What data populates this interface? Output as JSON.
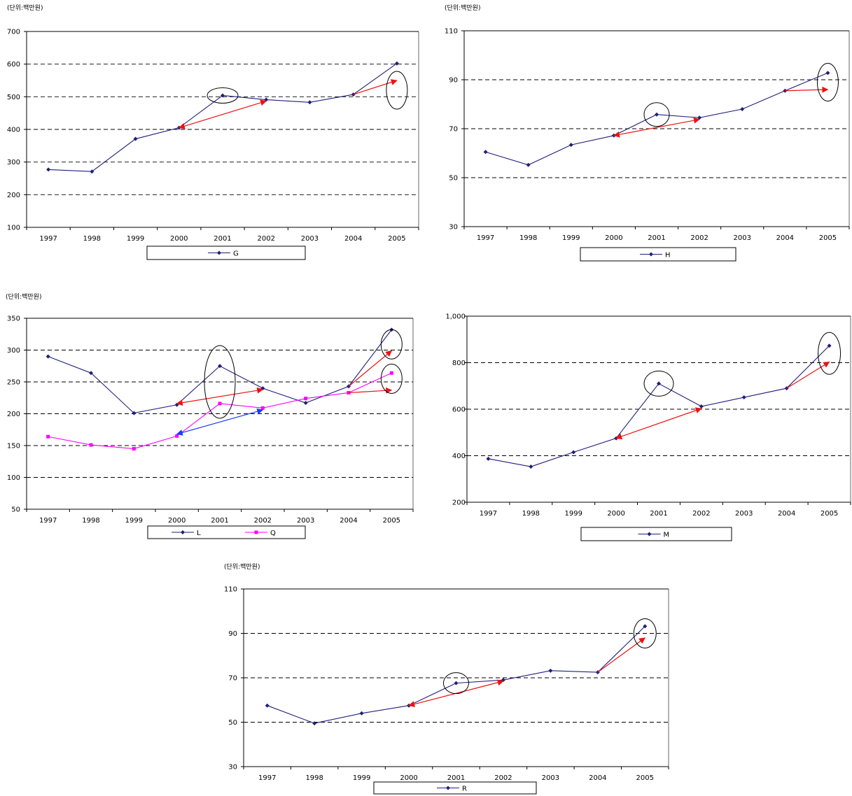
{
  "colors": {
    "navy": "#1f1f7a",
    "magenta": "#ff00ff",
    "red_arrow": "#ee1111",
    "blue_arrow": "#1a3cff",
    "grid": "#000000"
  },
  "chart_data": [
    {
      "id": "G",
      "type": "line",
      "unit_label": "(단위:백만원)",
      "categories": [
        "1997",
        "1998",
        "1999",
        "2000",
        "2001",
        "2002",
        "2003",
        "2004",
        "2005"
      ],
      "y_ticks": [
        "100",
        "200",
        "300",
        "400",
        "500",
        "600",
        "700"
      ],
      "ylim": [
        100,
        700
      ],
      "grid": "dashed horizontal",
      "legend_position": "bottom",
      "series": [
        {
          "name": "G",
          "color": "#1f1f7a",
          "marker": "diamond",
          "values": [
            277,
            271,
            371,
            405,
            504,
            491,
            483,
            507,
            602
          ]
        }
      ],
      "annotations": {
        "arrows": [
          {
            "from": [
              "2000",
              405
            ],
            "to": [
              "2002",
              487
            ],
            "color": "red",
            "heads": "both"
          },
          {
            "from": [
              "2004",
              507
            ],
            "to": [
              "2005",
              550
            ],
            "color": "red",
            "heads": "end"
          }
        ],
        "circles": [
          {
            "x": "2001",
            "y": 504
          },
          {
            "x": "2005",
            "y": 520
          }
        ]
      }
    },
    {
      "id": "H",
      "type": "line",
      "unit_label": "(단위:백만원)",
      "categories": [
        "1997",
        "1998",
        "1999",
        "2000",
        "2001",
        "2002",
        "2003",
        "2004",
        "2005"
      ],
      "y_ticks": [
        "30",
        "50",
        "70",
        "90",
        "110"
      ],
      "ylim": [
        30,
        110
      ],
      "grid": "dashed horizontal",
      "legend_position": "bottom",
      "series": [
        {
          "name": "H",
          "color": "#1f1f7a",
          "marker": "diamond",
          "values": [
            60.5,
            55.2,
            63.4,
            67.2,
            75.8,
            74.5,
            78,
            85.5,
            92.8
          ]
        }
      ],
      "annotations": {
        "arrows": [
          {
            "from": [
              "2000",
              67.2
            ],
            "to": [
              "2002",
              73.8
            ],
            "color": "red",
            "heads": "both"
          },
          {
            "from": [
              "2004",
              85.5
            ],
            "to": [
              "2005",
              86
            ],
            "color": "red",
            "heads": "end"
          }
        ],
        "circles": [
          {
            "x": "2001",
            "y": 75.8
          },
          {
            "x": "2005",
            "y": 89
          }
        ]
      }
    },
    {
      "id": "LQ",
      "type": "line",
      "unit_label": "(단위:백만원)",
      "categories": [
        "1997",
        "1998",
        "1999",
        "2000",
        "2001",
        "2002",
        "2003",
        "2004",
        "2005"
      ],
      "y_ticks": [
        "50",
        "100",
        "150",
        "200",
        "250",
        "300",
        "350"
      ],
      "ylim": [
        50,
        350
      ],
      "grid": "dashed horizontal",
      "legend_position": "bottom",
      "series": [
        {
          "name": "L",
          "color": "#1f1f7a",
          "marker": "diamond",
          "values": [
            290,
            264,
            201,
            214,
            275,
            240,
            217,
            243,
            332
          ]
        },
        {
          "name": "Q",
          "color": "#ff00ff",
          "marker": "square",
          "values": [
            164,
            151,
            145,
            165,
            216,
            209,
            224,
            233,
            264
          ]
        }
      ],
      "annotations": {
        "arrows": [
          {
            "from": [
              "2000",
              216
            ],
            "to": [
              "2002",
              238
            ],
            "color": "red",
            "heads": "both"
          },
          {
            "from": [
              "2004",
              243
            ],
            "to": [
              "2005",
              299
            ],
            "color": "red",
            "heads": "end"
          },
          {
            "from": [
              "2004",
              233
            ],
            "to": [
              "2005",
              237
            ],
            "color": "red",
            "heads": "end"
          },
          {
            "from": [
              "2000",
              168
            ],
            "to": [
              "2002",
              206
            ],
            "color": "blue",
            "heads": "both"
          }
        ],
        "circles": [
          {
            "x": "2001",
            "y": 250
          },
          {
            "x": "2005",
            "y": 309
          },
          {
            "x": "2005",
            "y": 255
          }
        ]
      }
    },
    {
      "id": "M",
      "type": "line",
      "unit_label": "",
      "categories": [
        "1997",
        "1998",
        "1999",
        "2000",
        "2001",
        "2002",
        "2003",
        "2004",
        "2005"
      ],
      "y_ticks": [
        "200",
        "400",
        "600",
        "800",
        "1,000"
      ],
      "ylim": [
        200,
        1000
      ],
      "grid": "dashed horizontal",
      "legend_position": "bottom",
      "series": [
        {
          "name": "M",
          "color": "#1f1f7a",
          "marker": "diamond",
          "values": [
            387,
            353,
            415,
            475,
            710,
            612,
            651,
            690,
            873
          ]
        }
      ],
      "annotations": {
        "arrows": [
          {
            "from": [
              "2000",
              475
            ],
            "to": [
              "2002",
              603
            ],
            "color": "red",
            "heads": "both"
          },
          {
            "from": [
              "2004",
              690
            ],
            "to": [
              "2005",
              803
            ],
            "color": "red",
            "heads": "end"
          }
        ],
        "circles": [
          {
            "x": "2001",
            "y": 710
          },
          {
            "x": "2005",
            "y": 840
          }
        ]
      }
    },
    {
      "id": "R",
      "type": "line",
      "unit_label": "(단위:백만원)",
      "categories": [
        "1997",
        "1998",
        "1999",
        "2000",
        "2001",
        "2002",
        "2003",
        "2004",
        "2005"
      ],
      "y_ticks": [
        "30",
        "50",
        "70",
        "90",
        "110"
      ],
      "ylim": [
        30,
        110
      ],
      "grid": "dashed horizontal",
      "legend_position": "bottom",
      "series": [
        {
          "name": "R",
          "color": "#1f1f7a",
          "marker": "diamond",
          "values": [
            57.5,
            49.5,
            54,
            57.5,
            67.6,
            69,
            73.2,
            72.5,
            93.2
          ]
        }
      ],
      "annotations": {
        "arrows": [
          {
            "from": [
              "2000",
              57.5
            ],
            "to": [
              "2002",
              68.5
            ],
            "color": "red",
            "heads": "both"
          },
          {
            "from": [
              "2004",
              72.5
            ],
            "to": [
              "2005",
              88
            ],
            "color": "red",
            "heads": "end"
          }
        ],
        "circles": [
          {
            "x": "2001",
            "y": 67.6
          },
          {
            "x": "2005",
            "y": 90
          }
        ]
      }
    }
  ]
}
